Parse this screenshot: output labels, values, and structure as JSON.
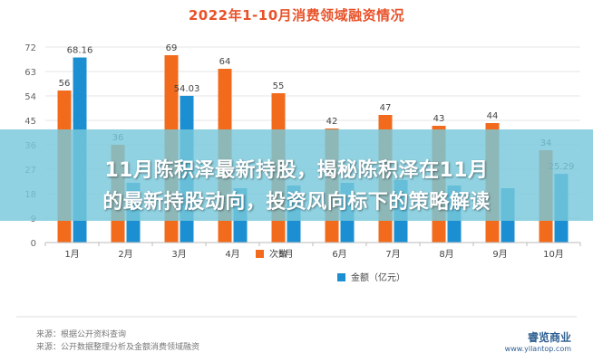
{
  "chart_data": {
    "type": "bar",
    "title": "2022年1-10月消费领域融资情况",
    "categories": [
      "1月",
      "2月",
      "3月",
      "4月",
      "5月",
      "6月",
      "7月",
      "8月",
      "9月",
      "10月"
    ],
    "series": [
      {
        "name": "次数",
        "color": "#f26b1d",
        "values": [
          56,
          36,
          69,
          64,
          55,
          42,
          47,
          43,
          44,
          34
        ],
        "labels": [
          "56",
          "36",
          "69",
          "64",
          "55",
          "42",
          "47",
          "43",
          "44",
          "34"
        ]
      },
      {
        "name": "金额（亿元）",
        "color": "#1b8fd2",
        "values": [
          68.16,
          22,
          54.03,
          20,
          21,
          22,
          23,
          21,
          20,
          25.29
        ],
        "labels": [
          "68.16",
          "",
          "54.03",
          "",
          "",
          "",
          "",
          "",
          "",
          "25.29"
        ]
      }
    ],
    "yticks": [
      "0",
      "9",
      "18",
      "27",
      "36",
      "45",
      "54",
      "63",
      "72"
    ],
    "ylim": [
      0,
      72
    ],
    "legend_position": "bottom",
    "grid": true
  },
  "banner": {
    "line1": "11月陈积泽最新持股，揭秘陈积泽在11月",
    "line2": "的最新持股动向，投资风向标下的策略解读"
  },
  "footnotes": {
    "line1": "来源：根据公开资料查询",
    "line2": "来源：公开数据整理分析及金额消费领域融资"
  },
  "watermark": {
    "brand": "睿览商业",
    "url": "www.yilantop.com"
  }
}
